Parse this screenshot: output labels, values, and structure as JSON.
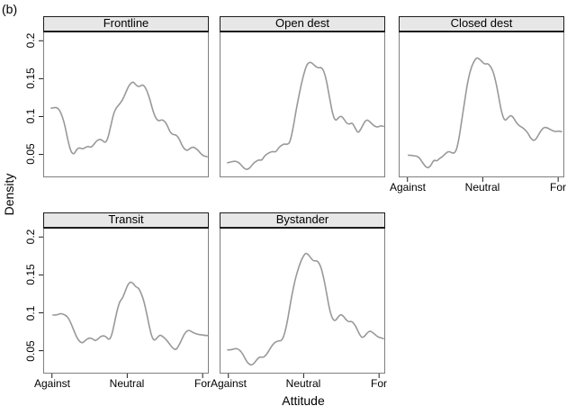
{
  "figure": {
    "tag": "(b)"
  },
  "colors": {
    "curve": "#999999",
    "panel_border": "#7f7f7f",
    "strip_bg": "#e7e7e7",
    "strip_border": "#1c1c1c",
    "tick": "#1c1c1c",
    "background": "#ffffff"
  },
  "chart_data": {
    "type": "line",
    "subtype": "trellis-density",
    "title": "",
    "xlabel": "Attitude",
    "ylabel": "Density",
    "ylim": [
      0.021,
      0.211
    ],
    "grid": false,
    "legend": "none",
    "x_ticks": {
      "labels": [
        "Against",
        "Neutral",
        "For"
      ],
      "positions": [
        0.048,
        0.5075,
        0.968
      ]
    },
    "y_ticks": {
      "labels": [
        "0.05",
        "0.1",
        "0.15",
        "0.2"
      ],
      "values": [
        0.05,
        0.1,
        0.15,
        0.2
      ]
    },
    "panels": [
      {
        "title": "Frontline",
        "row": 0,
        "col": 0,
        "axes": {
          "x": false,
          "y": true
        },
        "x_range": [
          0.044,
          0.995
        ],
        "values": [
          0.111,
          0.112,
          0.112,
          0.108,
          0.099,
          0.085,
          0.066,
          0.053,
          0.05,
          0.057,
          0.059,
          0.057,
          0.059,
          0.061,
          0.059,
          0.063,
          0.068,
          0.07,
          0.069,
          0.065,
          0.071,
          0.088,
          0.104,
          0.112,
          0.116,
          0.121,
          0.129,
          0.138,
          0.144,
          0.146,
          0.141,
          0.139,
          0.142,
          0.14,
          0.132,
          0.12,
          0.106,
          0.097,
          0.094,
          0.096,
          0.094,
          0.088,
          0.079,
          0.076,
          0.076,
          0.072,
          0.063,
          0.057,
          0.055,
          0.058,
          0.06,
          0.058,
          0.055,
          0.05,
          0.048,
          0.047
        ]
      },
      {
        "title": "Open dest",
        "row": 0,
        "col": 1,
        "axes": {
          "x": false,
          "y": false
        },
        "x_range": [
          0.044,
          0.995
        ],
        "values": [
          0.039,
          0.04,
          0.041,
          0.041,
          0.039,
          0.035,
          0.031,
          0.03,
          0.033,
          0.038,
          0.041,
          0.043,
          0.042,
          0.048,
          0.051,
          0.053,
          0.054,
          0.053,
          0.059,
          0.062,
          0.064,
          0.063,
          0.066,
          0.083,
          0.105,
          0.125,
          0.143,
          0.158,
          0.169,
          0.172,
          0.17,
          0.166,
          0.164,
          0.165,
          0.16,
          0.145,
          0.124,
          0.104,
          0.094,
          0.098,
          0.101,
          0.097,
          0.091,
          0.09,
          0.092,
          0.085,
          0.078,
          0.083,
          0.091,
          0.096,
          0.094,
          0.09,
          0.087,
          0.086,
          0.088,
          0.087
        ]
      },
      {
        "title": "Closed dest",
        "row": 0,
        "col": 2,
        "axes": {
          "x": true,
          "y": false
        },
        "x_range": [
          0.054,
          0.989
        ],
        "values": [
          0.049,
          0.049,
          0.048,
          0.048,
          0.045,
          0.039,
          0.034,
          0.032,
          0.036,
          0.043,
          0.041,
          0.045,
          0.047,
          0.051,
          0.054,
          0.053,
          0.051,
          0.056,
          0.075,
          0.1,
          0.125,
          0.148,
          0.163,
          0.172,
          0.178,
          0.176,
          0.172,
          0.169,
          0.17,
          0.166,
          0.158,
          0.143,
          0.122,
          0.103,
          0.094,
          0.098,
          0.102,
          0.099,
          0.092,
          0.088,
          0.086,
          0.083,
          0.079,
          0.072,
          0.068,
          0.07,
          0.077,
          0.083,
          0.086,
          0.085,
          0.083,
          0.081,
          0.08,
          0.081,
          0.08
        ]
      },
      {
        "title": "Transit",
        "row": 1,
        "col": 0,
        "axes": {
          "x": true,
          "y": true
        },
        "x_range": [
          0.054,
          1.0
        ],
        "values": [
          0.097,
          0.097,
          0.098,
          0.099,
          0.098,
          0.096,
          0.092,
          0.084,
          0.075,
          0.067,
          0.062,
          0.06,
          0.063,
          0.066,
          0.067,
          0.065,
          0.063,
          0.066,
          0.069,
          0.07,
          0.068,
          0.064,
          0.07,
          0.086,
          0.103,
          0.115,
          0.119,
          0.128,
          0.137,
          0.141,
          0.139,
          0.134,
          0.133,
          0.126,
          0.116,
          0.101,
          0.083,
          0.068,
          0.063,
          0.067,
          0.071,
          0.069,
          0.066,
          0.062,
          0.057,
          0.053,
          0.051,
          0.056,
          0.063,
          0.071,
          0.076,
          0.077,
          0.075,
          0.073,
          0.072,
          0.071,
          0.071,
          0.07,
          0.07
        ]
      },
      {
        "title": "Bystander",
        "row": 1,
        "col": 1,
        "axes": {
          "x": true,
          "y": false
        },
        "x_range": [
          0.044,
          0.995
        ],
        "values": [
          0.051,
          0.051,
          0.052,
          0.053,
          0.052,
          0.049,
          0.043,
          0.036,
          0.032,
          0.031,
          0.034,
          0.039,
          0.042,
          0.041,
          0.043,
          0.048,
          0.054,
          0.059,
          0.062,
          0.063,
          0.063,
          0.07,
          0.085,
          0.105,
          0.125,
          0.142,
          0.155,
          0.166,
          0.174,
          0.179,
          0.177,
          0.172,
          0.168,
          0.169,
          0.166,
          0.157,
          0.142,
          0.122,
          0.103,
          0.092,
          0.089,
          0.094,
          0.098,
          0.096,
          0.091,
          0.088,
          0.089,
          0.086,
          0.08,
          0.072,
          0.067,
          0.069,
          0.074,
          0.076,
          0.074,
          0.071,
          0.068,
          0.067,
          0.066
        ]
      }
    ]
  }
}
